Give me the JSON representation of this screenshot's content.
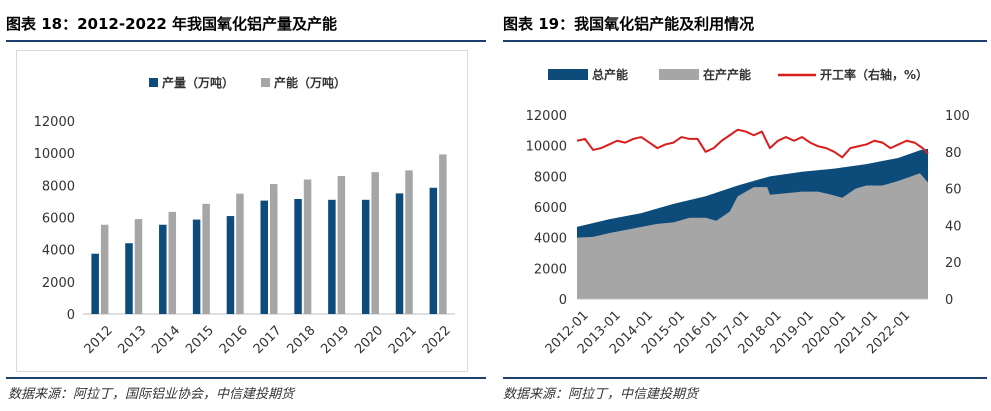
{
  "left": {
    "title": "图表 18：2012-2022 年我国氧化铝产量及产能",
    "source": "数据来源：阿拉丁，国际铝业协会，中信建投期货"
  },
  "right": {
    "title": "图表 19：我国氧化铝产能及利用情况",
    "source": "数据来源：阿拉丁，中信建投期货"
  },
  "colors": {
    "navy": "#0d4c7a",
    "gray": "#a6a6a6",
    "red": "#d81e1e",
    "rule": "#1c3f6e"
  },
  "chart_data": [
    {
      "type": "bar",
      "categories": [
        "2012",
        "2013",
        "2014",
        "2015",
        "2016",
        "2017",
        "2018",
        "2019",
        "2020",
        "2021",
        "2022"
      ],
      "series": [
        {
          "name": "产量（万吨）",
          "color": "#0d4c7a",
          "values": [
            3750,
            4400,
            5550,
            5870,
            6090,
            7050,
            7150,
            7100,
            7100,
            7500,
            7850
          ]
        },
        {
          "name": "产能（万吨）",
          "color": "#a6a6a6",
          "values": [
            5550,
            5900,
            6350,
            6850,
            7480,
            8080,
            8360,
            8580,
            8820,
            8930,
            9920
          ]
        }
      ],
      "ylim": [
        0,
        12000
      ],
      "yticks": [
        0,
        2000,
        4000,
        6000,
        8000,
        10000,
        12000
      ],
      "legend_position": "top-center",
      "grid": false
    },
    {
      "type": "area",
      "x_ticks": [
        "2012-01",
        "2013-01",
        "2014-01",
        "2015-01",
        "2016-01",
        "2017-01",
        "2018-01",
        "2019-01",
        "2020-01",
        "2021-01",
        "2022-01"
      ],
      "x_range": [
        "2012-01",
        "2022-12"
      ],
      "ylim_left": [
        0,
        12000
      ],
      "yticks_left": [
        0,
        2000,
        4000,
        6000,
        8000,
        10000,
        12000
      ],
      "ylim_right": [
        0,
        100
      ],
      "yticks_right": [
        0,
        20,
        40,
        60,
        80,
        100
      ],
      "legend_position": "top",
      "series": [
        {
          "name": "总产能",
          "axis": "left",
          "kind": "area",
          "color": "#0d4c7a",
          "points": [
            [
              "2012-01",
              4700
            ],
            [
              "2013-01",
              5200
            ],
            [
              "2014-01",
              5600
            ],
            [
              "2015-01",
              6200
            ],
            [
              "2016-01",
              6700
            ],
            [
              "2017-01",
              7400
            ],
            [
              "2018-01",
              8000
            ],
            [
              "2019-01",
              8300
            ],
            [
              "2020-01",
              8500
            ],
            [
              "2021-01",
              8800
            ],
            [
              "2022-01",
              9200
            ],
            [
              "2022-09",
              9700
            ],
            [
              "2022-12",
              9800
            ]
          ]
        },
        {
          "name": "在产产能",
          "axis": "left",
          "kind": "area",
          "color": "#a6a6a6",
          "points": [
            [
              "2012-01",
              4000
            ],
            [
              "2012-07",
              4050
            ],
            [
              "2013-01",
              4300
            ],
            [
              "2013-07",
              4500
            ],
            [
              "2014-01",
              4700
            ],
            [
              "2014-07",
              4900
            ],
            [
              "2015-01",
              5000
            ],
            [
              "2015-07",
              5300
            ],
            [
              "2016-01",
              5300
            ],
            [
              "2016-05",
              5100
            ],
            [
              "2016-10",
              5700
            ],
            [
              "2017-01",
              6700
            ],
            [
              "2017-07",
              7300
            ],
            [
              "2017-12",
              7300
            ],
            [
              "2018-01",
              6800
            ],
            [
              "2018-07",
              6900
            ],
            [
              "2019-01",
              7000
            ],
            [
              "2019-07",
              7000
            ],
            [
              "2019-12",
              6800
            ],
            [
              "2020-04",
              6600
            ],
            [
              "2020-09",
              7200
            ],
            [
              "2021-01",
              7400
            ],
            [
              "2021-07",
              7400
            ],
            [
              "2022-01",
              7700
            ],
            [
              "2022-09",
              8200
            ],
            [
              "2022-12",
              7600
            ]
          ]
        },
        {
          "name": "开工率（右轴，%）",
          "axis": "right",
          "kind": "line",
          "color": "#d81e1e",
          "points": [
            [
              "2012-01",
              86
            ],
            [
              "2012-04",
              87
            ],
            [
              "2012-07",
              81
            ],
            [
              "2012-10",
              82
            ],
            [
              "2013-01",
              84
            ],
            [
              "2013-04",
              86
            ],
            [
              "2013-07",
              85
            ],
            [
              "2013-10",
              87
            ],
            [
              "2014-01",
              88
            ],
            [
              "2014-04",
              85
            ],
            [
              "2014-07",
              82
            ],
            [
              "2014-10",
              84
            ],
            [
              "2015-01",
              85
            ],
            [
              "2015-04",
              88
            ],
            [
              "2015-07",
              87
            ],
            [
              "2015-10",
              87
            ],
            [
              "2016-01",
              80
            ],
            [
              "2016-04",
              82
            ],
            [
              "2016-07",
              86
            ],
            [
              "2016-10",
              89
            ],
            [
              "2017-01",
              92
            ],
            [
              "2017-04",
              91
            ],
            [
              "2017-07",
              89
            ],
            [
              "2017-10",
              91
            ],
            [
              "2018-01",
              82
            ],
            [
              "2018-04",
              86
            ],
            [
              "2018-07",
              88
            ],
            [
              "2018-10",
              86
            ],
            [
              "2019-01",
              88
            ],
            [
              "2019-04",
              85
            ],
            [
              "2019-07",
              83
            ],
            [
              "2019-10",
              82
            ],
            [
              "2020-01",
              80
            ],
            [
              "2020-04",
              77
            ],
            [
              "2020-07",
              82
            ],
            [
              "2020-10",
              83
            ],
            [
              "2021-01",
              84
            ],
            [
              "2021-04",
              86
            ],
            [
              "2021-07",
              85
            ],
            [
              "2021-10",
              82
            ],
            [
              "2022-01",
              84
            ],
            [
              "2022-04",
              86
            ],
            [
              "2022-07",
              85
            ],
            [
              "2022-10",
              82
            ],
            [
              "2022-12",
              79
            ]
          ]
        }
      ]
    }
  ]
}
